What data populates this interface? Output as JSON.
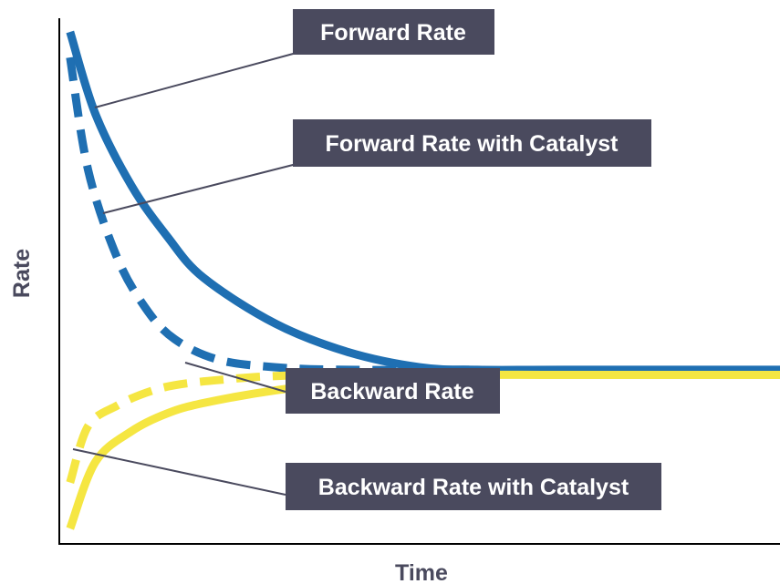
{
  "chart_data": {
    "type": "line",
    "xlabel": "Time",
    "ylabel": "Rate",
    "xlim": [
      0,
      10
    ],
    "ylim": [
      0,
      10
    ],
    "grid": false,
    "series": [
      {
        "name": "Forward Rate",
        "color": "#1f6fb2",
        "style": "solid",
        "x": [
          0.15,
          0.5,
          1.0,
          1.5,
          2.0,
          3.0,
          4.0,
          5.0,
          5.8,
          7.0,
          10.0
        ],
        "y": [
          10.0,
          8.4,
          7.0,
          6.0,
          5.2,
          4.3,
          3.75,
          3.45,
          3.4,
          3.4,
          3.4
        ]
      },
      {
        "name": "Forward Rate with Catalyst",
        "color": "#1f6fb2",
        "style": "dashed",
        "x": [
          0.15,
          0.4,
          0.8,
          1.2,
          1.6,
          2.2,
          3.0,
          4.0,
          5.8
        ],
        "y": [
          9.5,
          7.3,
          5.6,
          4.6,
          4.0,
          3.6,
          3.45,
          3.4,
          3.4
        ]
      },
      {
        "name": "Backward Rate",
        "color": "#f5e642",
        "style": "solid",
        "x": [
          0.15,
          0.5,
          1.0,
          1.5,
          2.0,
          3.0,
          4.0,
          5.0,
          5.8,
          7.0,
          10.0
        ],
        "y": [
          0.3,
          1.6,
          2.2,
          2.55,
          2.75,
          3.0,
          3.15,
          3.25,
          3.3,
          3.3,
          3.3
        ]
      },
      {
        "name": "Backward Rate with Catalyst",
        "color": "#f5e642",
        "style": "dashed",
        "x": [
          0.15,
          0.4,
          0.8,
          1.2,
          1.6,
          2.2,
          3.0,
          4.0,
          5.8
        ],
        "y": [
          1.2,
          2.3,
          2.7,
          2.95,
          3.1,
          3.2,
          3.28,
          3.3,
          3.3
        ]
      }
    ],
    "annotations": [
      "Forward Rate",
      "Forward Rate with Catalyst",
      "Backward Rate",
      "Backward Rate with Catalyst"
    ],
    "colors": {
      "label_background": "#4a4a5e",
      "label_text": "#ffffff",
      "axis": "#000000",
      "leader_line": "#4a4a5e"
    }
  }
}
